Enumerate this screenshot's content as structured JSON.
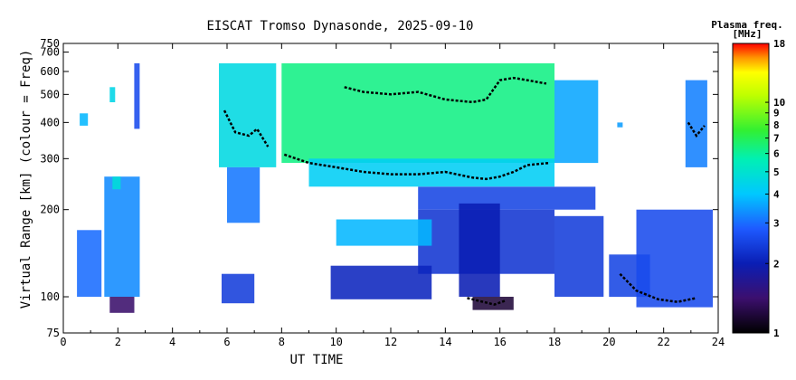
{
  "chart_data": {
    "type": "heatmap",
    "title": "EISCAT Tromso Dynasonde, 2025-09-10",
    "xlabel": "UT TIME",
    "ylabel": "Virtual Range [km] (colour = Freq)",
    "x_range": [
      0,
      24
    ],
    "x_ticks": [
      "0",
      "2",
      "4",
      "6",
      "8",
      "10",
      "12",
      "14",
      "16",
      "18",
      "20",
      "22",
      "24"
    ],
    "y_range": [
      75,
      750
    ],
    "y_scale": "log",
    "y_ticks": [
      "75",
      "100",
      "200",
      "300",
      "400",
      "500",
      "600",
      "700",
      "750"
    ],
    "colorbar": {
      "title": "Plasma freq.",
      "unit": "[MHz]",
      "range": [
        1,
        18
      ],
      "scale": "log",
      "ticks": [
        "1",
        "2",
        "3",
        "4",
        "5",
        "6",
        "7",
        "8",
        "9",
        "10",
        "18"
      ]
    },
    "regions": [
      {
        "t": [
          0.5,
          1.4
        ],
        "h": [
          100,
          170
        ],
        "f": 3.0
      },
      {
        "t": [
          1.5,
          2.8
        ],
        "h": [
          100,
          260
        ],
        "f": 3.3
      },
      {
        "t": [
          0.6,
          0.9
        ],
        "h": [
          390,
          430
        ],
        "f": 3.8
      },
      {
        "t": [
          1.7,
          1.9
        ],
        "h": [
          470,
          530
        ],
        "f": 4.5
      },
      {
        "t": [
          1.8,
          2.1
        ],
        "h": [
          235,
          260
        ],
        "f": 4.8
      },
      {
        "t": [
          2.6,
          2.8
        ],
        "h": [
          380,
          640
        ],
        "f": 2.6
      },
      {
        "t": [
          1.7,
          2.6
        ],
        "h": [
          88,
          100
        ],
        "f": 1.4
      },
      {
        "t": [
          5.7,
          7.8
        ],
        "h": [
          280,
          640
        ],
        "f": 4.6
      },
      {
        "t": [
          6.0,
          7.2
        ],
        "h": [
          180,
          280
        ],
        "f": 3.1
      },
      {
        "t": [
          5.8,
          7.0
        ],
        "h": [
          95,
          120
        ],
        "f": 2.4
      },
      {
        "t": [
          8.0,
          18.0
        ],
        "h": [
          290,
          640
        ],
        "f": 6.3
      },
      {
        "t": [
          9.0,
          18.0
        ],
        "h": [
          240,
          300
        ],
        "f": 4.2
      },
      {
        "t": [
          18.0,
          19.6
        ],
        "h": [
          290,
          560
        ],
        "f": 3.6
      },
      {
        "t": [
          13.0,
          19.5
        ],
        "h": [
          200,
          240
        ],
        "f": 2.5
      },
      {
        "t": [
          13.0,
          18.0
        ],
        "h": [
          120,
          200
        ],
        "f": 2.3
      },
      {
        "t": [
          10.0,
          13.5
        ],
        "h": [
          150,
          185
        ],
        "f": 3.8
      },
      {
        "t": [
          9.8,
          13.5
        ],
        "h": [
          98,
          128
        ],
        "f": 2.1
      },
      {
        "t": [
          14.5,
          16.0
        ],
        "h": [
          100,
          210
        ],
        "f": 2.0
      },
      {
        "t": [
          15.0,
          16.5
        ],
        "h": [
          90,
          100
        ],
        "f": 1.2
      },
      {
        "t": [
          18.0,
          19.8
        ],
        "h": [
          100,
          190
        ],
        "f": 2.4
      },
      {
        "t": [
          20.0,
          21.5
        ],
        "h": [
          100,
          140
        ],
        "f": 2.5
      },
      {
        "t": [
          21.0,
          23.8
        ],
        "h": [
          92,
          200
        ],
        "f": 2.6
      },
      {
        "t": [
          22.8,
          23.6
        ],
        "h": [
          280,
          560
        ],
        "f": 3.2
      },
      {
        "t": [
          20.3,
          20.5
        ],
        "h": [
          385,
          400
        ],
        "f": 3.5
      }
    ],
    "traces": [
      {
        "t": [
          5.9,
          6.3,
          6.8,
          7.1,
          7.5
        ],
        "h": [
          440,
          370,
          360,
          380,
          330
        ]
      },
      {
        "t": [
          8.1,
          9.0,
          10.0,
          11.0,
          12.0,
          13.0,
          14.0,
          15.0,
          15.5,
          16.0,
          16.5,
          17.0,
          17.8
        ],
        "h": [
          310,
          290,
          280,
          270,
          265,
          265,
          270,
          258,
          255,
          260,
          270,
          285,
          290
        ]
      },
      {
        "t": [
          10.3,
          11.0,
          12.0,
          13.0,
          14.0,
          15.0,
          15.5,
          16.0,
          16.5,
          17.0,
          17.7
        ],
        "h": [
          530,
          510,
          500,
          510,
          480,
          470,
          480,
          560,
          570,
          560,
          545
        ]
      },
      {
        "t": [
          14.8,
          15.2,
          15.8,
          16.2
        ],
        "h": [
          99,
          97,
          94,
          97
        ]
      },
      {
        "t": [
          20.4,
          21.0,
          21.8,
          22.5,
          23.2
        ],
        "h": [
          120,
          105,
          98,
          96,
          99
        ]
      },
      {
        "t": [
          22.9,
          23.2,
          23.5
        ],
        "h": [
          400,
          360,
          390
        ]
      }
    ]
  }
}
